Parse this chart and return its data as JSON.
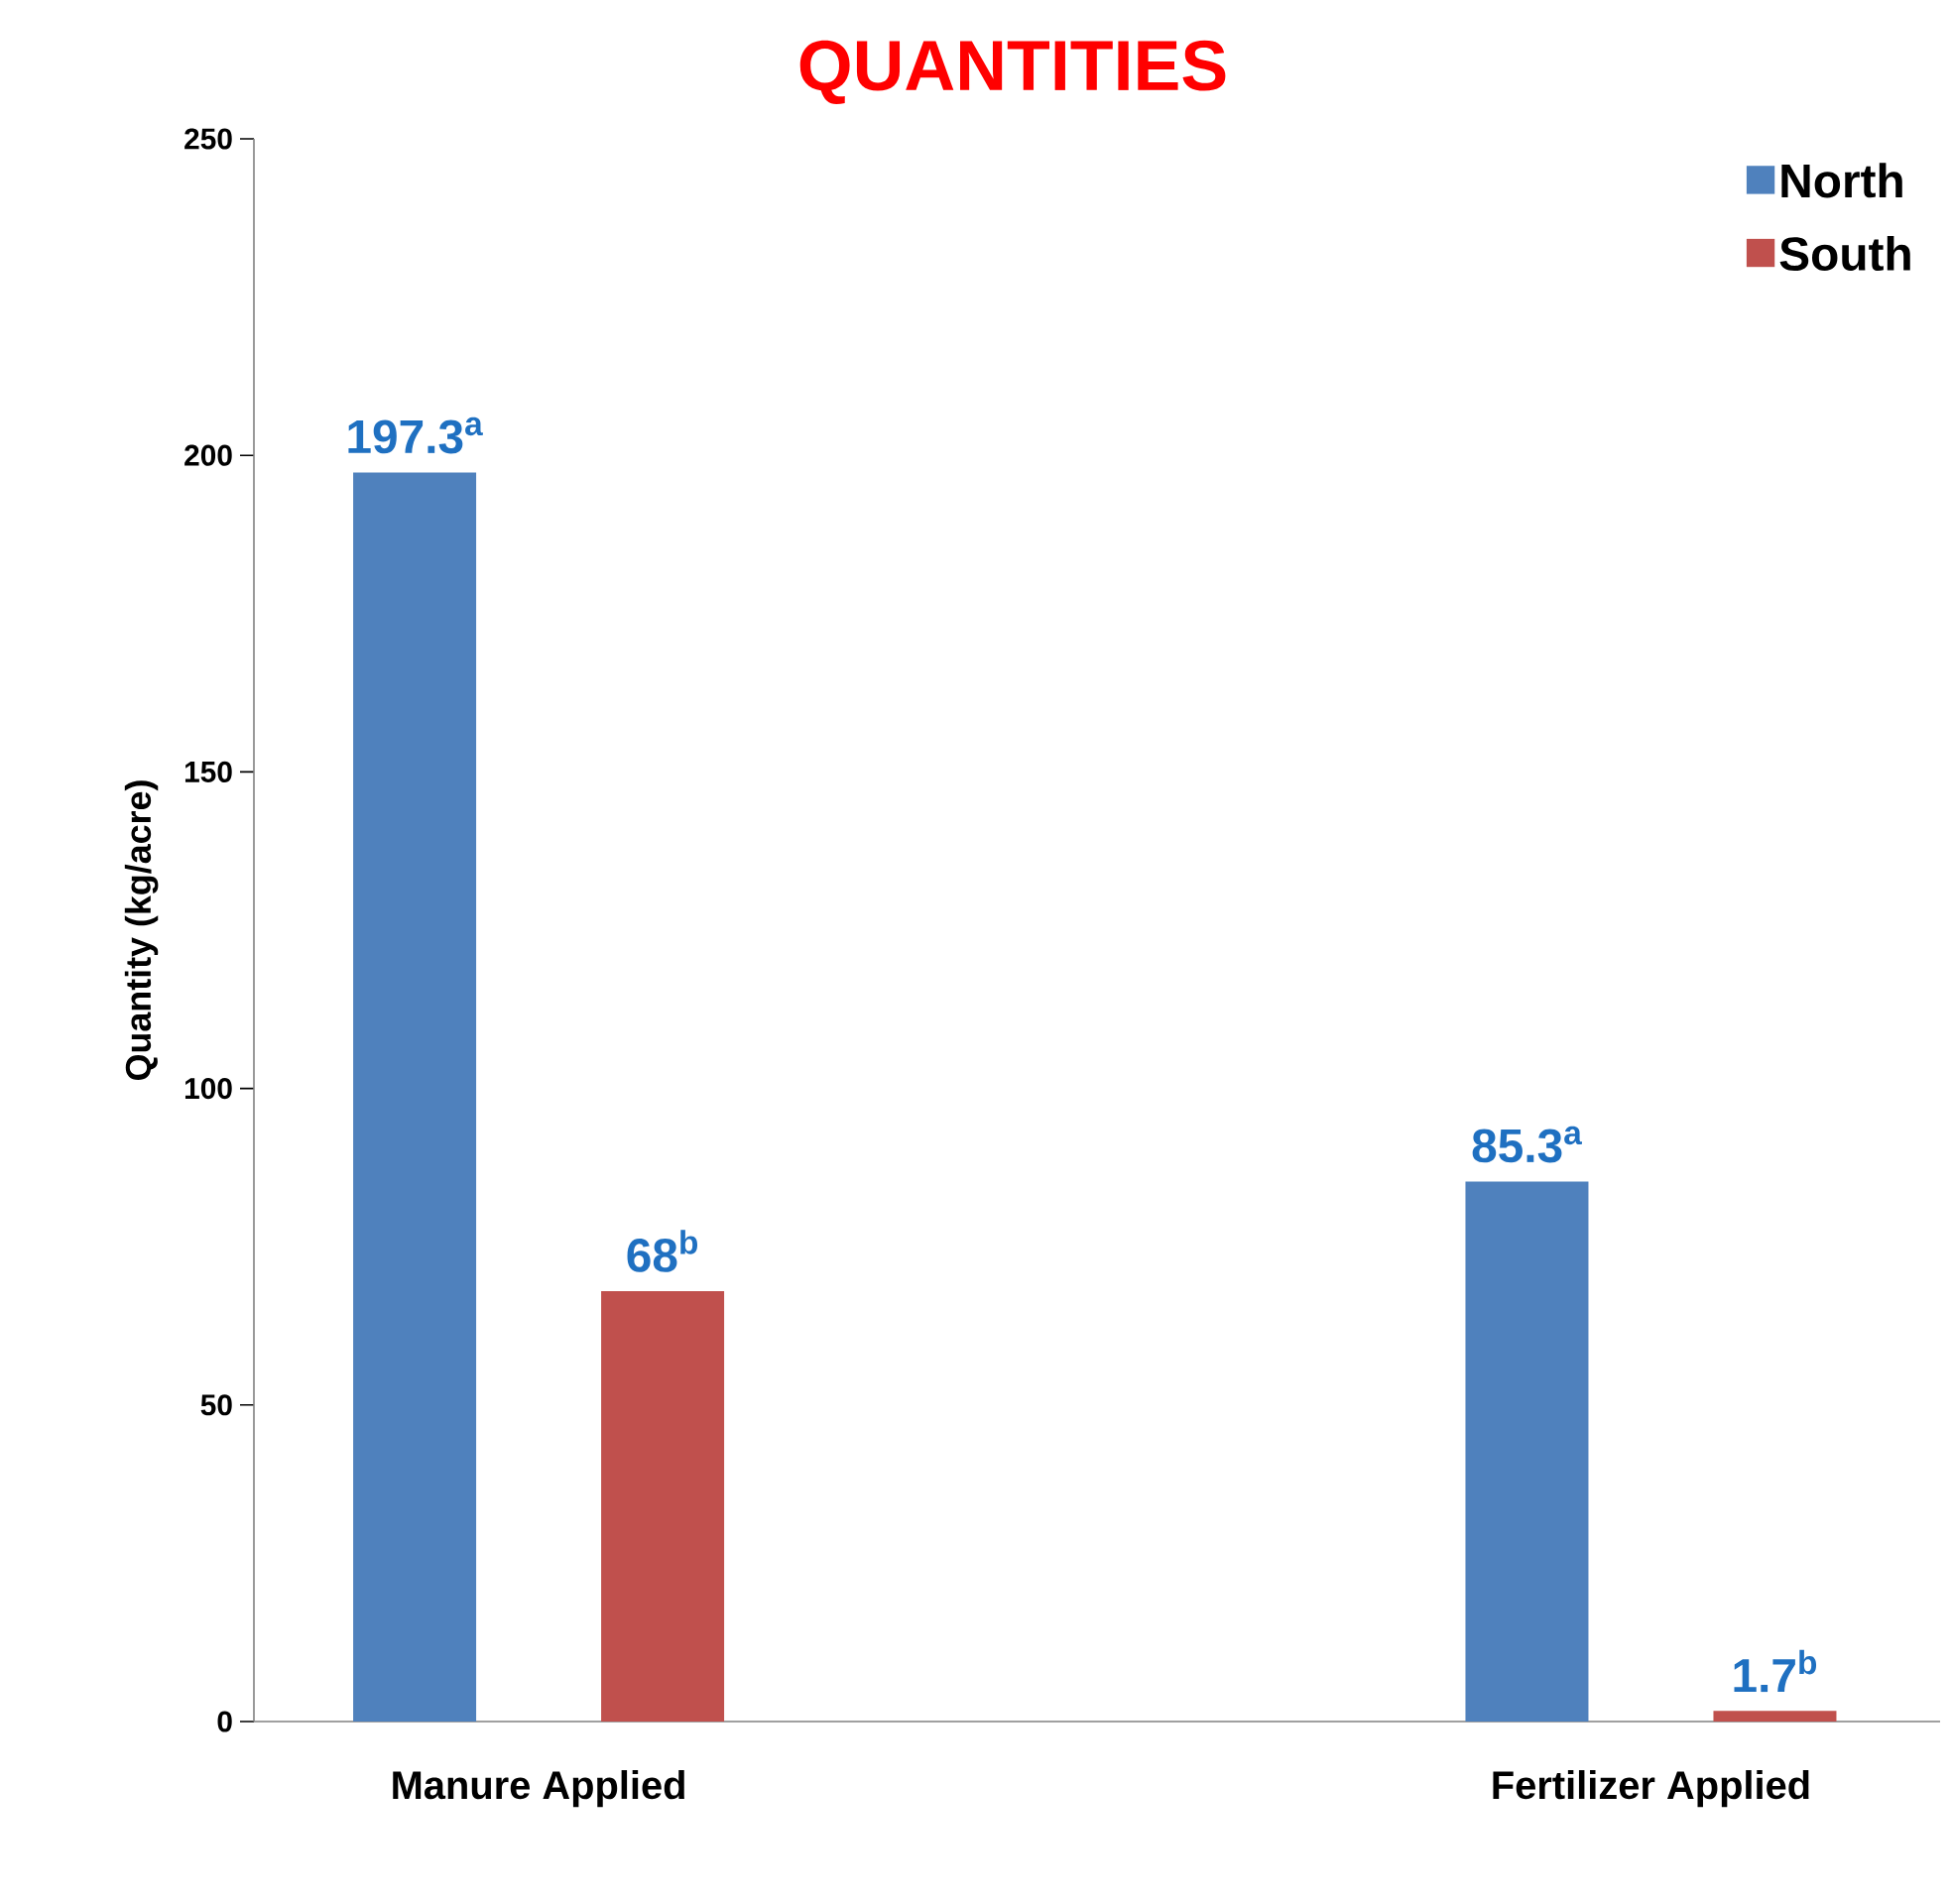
{
  "chart_data": {
    "type": "bar",
    "title": "QUANTITIES",
    "ylabel": "Quantity (kg/acre)",
    "categories": [
      "Manure Applied",
      "Fertilizer Applied"
    ],
    "series": [
      {
        "name": "North",
        "color": "#4f81bd",
        "values": [
          197.3,
          85.3
        ],
        "value_labels": [
          "197.3$^{a}$",
          "85.3$^{a}$"
        ]
      },
      {
        "name": "South",
        "color": "#c0504d",
        "values": [
          68,
          1.7
        ],
        "value_labels": [
          "68$^{b}$",
          "1.7$^{b}$"
        ]
      }
    ],
    "ylim": [
      0,
      250
    ],
    "yticks": [
      0,
      50,
      100,
      150,
      200,
      250
    ],
    "legend": "top right"
  }
}
